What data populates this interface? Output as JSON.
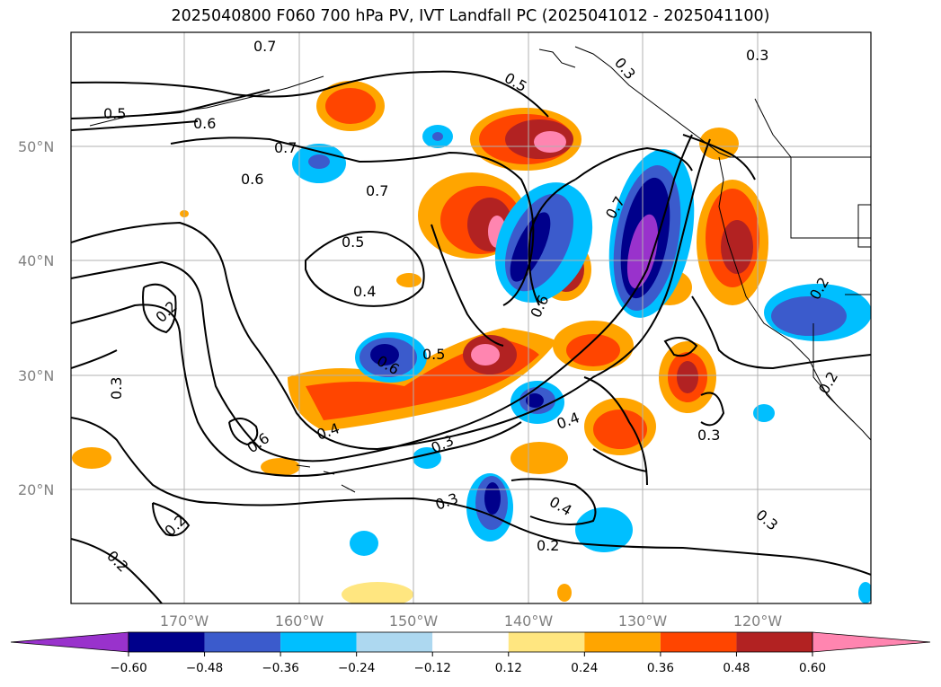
{
  "title": "2025040800 F060 700 hPa PV, IVT Landfall PC (2025041012 - 2025041100)",
  "map": {
    "lat_labels": [
      "50°N",
      "40°N",
      "30°N",
      "20°N"
    ],
    "lon_labels": [
      "170°W",
      "160°W",
      "150°W",
      "140°W",
      "130°W",
      "120°W"
    ],
    "contour_labels": [
      "0.7",
      "0.5",
      "0.6",
      "0.7",
      "0.6",
      "0.7",
      "0.5",
      "0.4",
      "0.5",
      "0.3",
      "0.3",
      "0.2",
      "0.3",
      "0.6",
      "0.4",
      "0.6",
      "0.5",
      "0.3",
      "0.4",
      "0.3",
      "0.4",
      "0.3",
      "0.2",
      "0.2",
      "0.2",
      "0.7",
      "0.6",
      "0.3",
      "0.2",
      "0.2"
    ],
    "colors": {
      "ocean_bg": "#ffffff",
      "grid": "#b0b0b0",
      "coast": "#000000",
      "contour": "#000000"
    }
  },
  "colorbar": {
    "ticks": [
      "−0.60",
      "−0.48",
      "−0.36",
      "−0.24",
      "−0.12",
      "0.12",
      "0.24",
      "0.36",
      "0.48",
      "0.60"
    ],
    "colors": [
      "#9932cc",
      "#00008b",
      "#3b5bcc",
      "#00bfff",
      "#add8f0",
      "#ffffff",
      "#ffe680",
      "#ffa500",
      "#ff4500",
      "#b22222",
      "#ff85b0",
      "#ff85b0"
    ]
  }
}
